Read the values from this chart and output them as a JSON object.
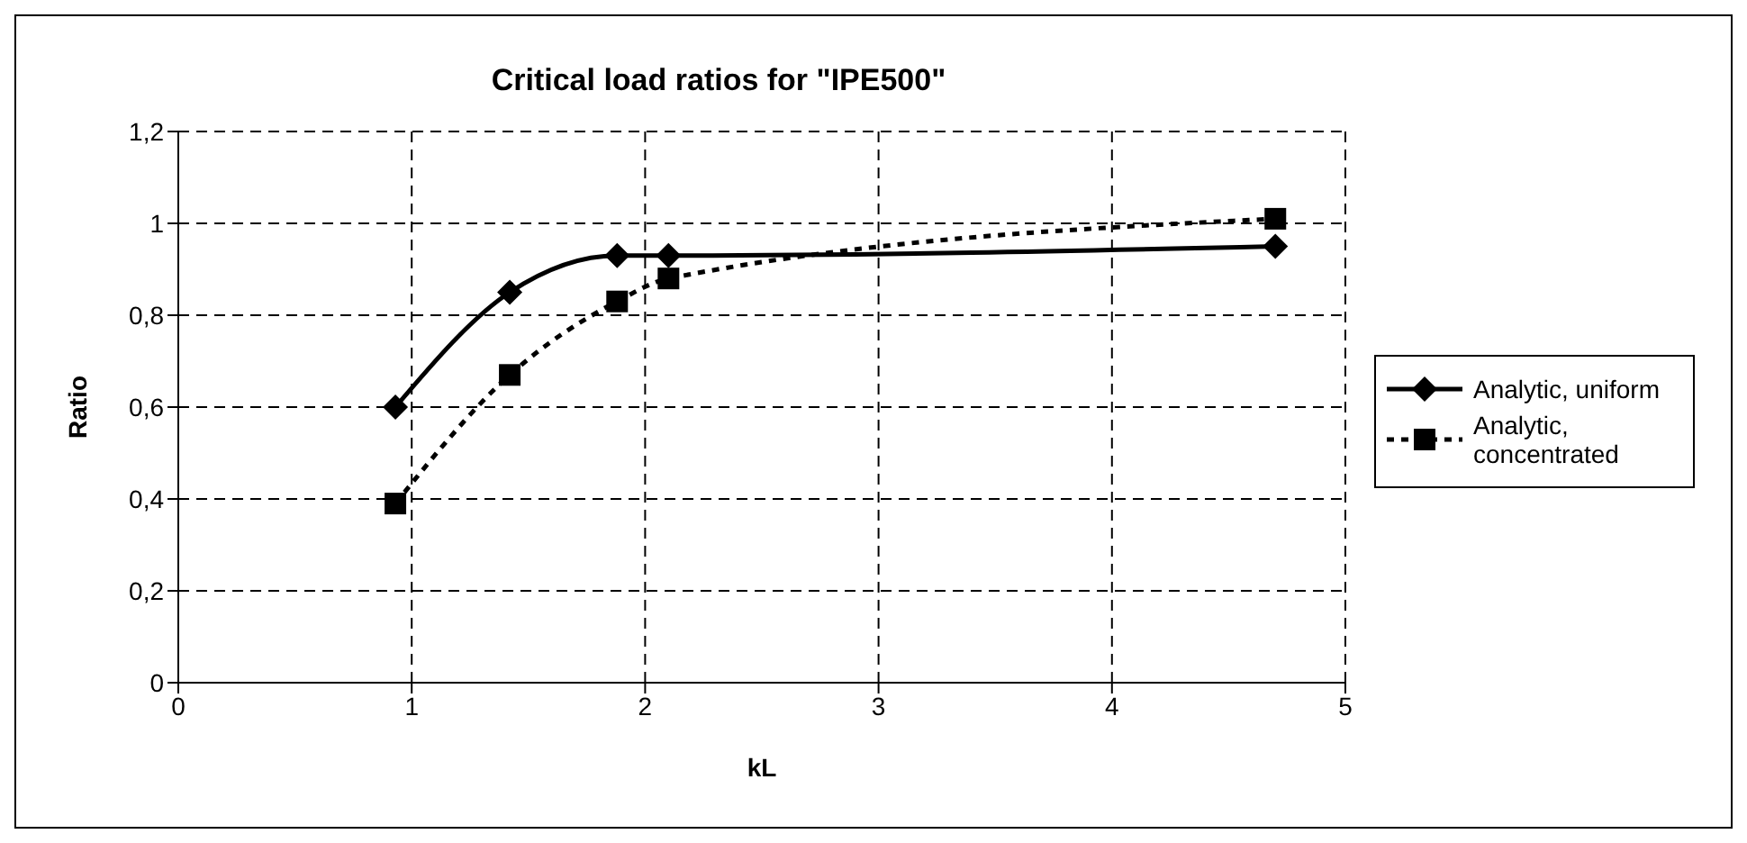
{
  "chart_data": {
    "type": "line",
    "title": "Critical load ratios for \"IPE500\"",
    "xlabel": "kL",
    "ylabel": "Ratio",
    "x": [
      0.93,
      1.42,
      1.88,
      2.1,
      4.7
    ],
    "series": [
      {
        "name": "Analytic, uniform",
        "color": "#000000",
        "values": [
          0.6,
          0.85,
          0.93,
          0.93,
          0.95
        ],
        "marker": "diamond",
        "line_style": "solid"
      },
      {
        "name": "Analytic, concentrated",
        "color": "#000000",
        "values": [
          0.39,
          0.67,
          0.83,
          0.88,
          1.01
        ],
        "marker": "square",
        "line_style": "dotted"
      }
    ],
    "xlim": [
      0,
      5
    ],
    "xticks": [
      0,
      1,
      2,
      3,
      4,
      5
    ],
    "ylim": [
      0,
      1.2
    ],
    "yticks": [
      0,
      {
        "value": 0.2,
        "label": "0,2"
      },
      {
        "value": 0.4,
        "label": "0,4"
      },
      {
        "value": 0.6,
        "label": "0,6"
      },
      {
        "value": 0.8,
        "label": "0,8"
      },
      1,
      {
        "value": 1.2,
        "label": "1,2"
      }
    ],
    "grid": true,
    "legend": "right"
  }
}
